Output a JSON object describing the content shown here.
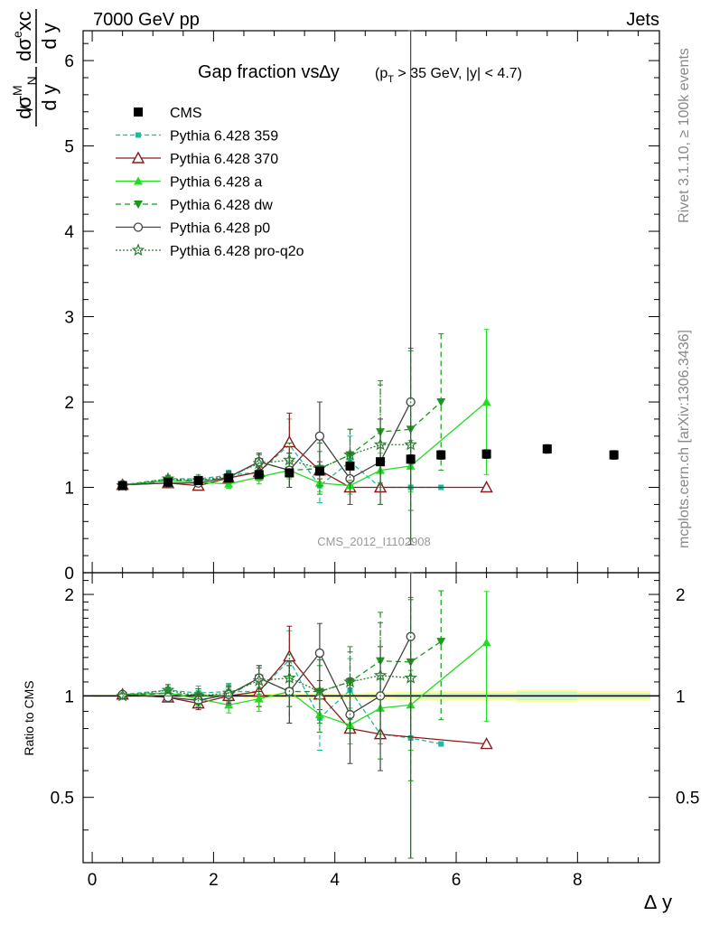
{
  "header": {
    "left": "7000 GeV pp",
    "right": "Jets"
  },
  "side_text": {
    "rivet": "Rivet 3.1.10, ≥ 100k events",
    "mcplots": "mcplots.cern.ch [arXiv:1306.3436]"
  },
  "analysis_label": "CMS_2012_I1102908",
  "colors": {
    "cms": "#000000",
    "p359": "#1abc9c",
    "p370": "#8b1a1a",
    "a": "#22dd22",
    "dw": "#1a9a1a",
    "p0": "#444444",
    "pro_q2o": "#2e7d32",
    "band_outer": "#ffff99",
    "band_inner": "#ccf5cc"
  },
  "chart_data": [
    {
      "type": "scatter",
      "title": "Gap fraction vs∆y",
      "title_sub": "(p_T > 35 GeV, |y| < 4.7)",
      "ylabel": "dσ^M_N/dy / dσ^exc/dy",
      "xlabel": "",
      "xlim": [
        -0.15,
        9.35
      ],
      "ylim": [
        0,
        6.35
      ],
      "yticks": [
        0,
        1,
        2,
        3,
        4,
        5,
        6
      ],
      "grid": false,
      "legend_position": "top-left",
      "series": [
        {
          "name": "CMS",
          "key": "cms",
          "style": "square",
          "dash": "",
          "x": [
            0.5,
            1.25,
            1.75,
            2.25,
            2.75,
            3.25,
            3.75,
            4.25,
            4.75,
            5.25,
            5.75,
            6.5,
            7.5,
            8.6
          ],
          "y": [
            1.02,
            1.06,
            1.08,
            1.11,
            1.15,
            1.17,
            1.19,
            1.25,
            1.3,
            1.33,
            1.38,
            1.39,
            1.45,
            1.38
          ],
          "err": [
            0.01,
            0.01,
            0.01,
            0.01,
            0.02,
            0.02,
            0.03,
            0.03,
            0.04,
            0.05,
            0.05,
            0.05,
            0.05,
            0.05
          ]
        },
        {
          "name": "Pythia 6.428 359",
          "key": "p359",
          "style": "smallsquare",
          "dash": "5,3",
          "x": [
            0.5,
            1.25,
            1.75,
            2.25,
            2.75,
            3.25,
            3.75,
            4.25,
            4.75,
            5.25,
            5.75
          ],
          "y": [
            1.03,
            1.1,
            1.1,
            1.14,
            1.18,
            1.5,
            1.02,
            1.3,
            1.0,
            1.0,
            1.0
          ],
          "err": [
            0.02,
            0.04,
            0.05,
            0.06,
            0.1,
            0.3,
            0.2,
            0.3,
            0.0,
            0.0,
            0.0
          ]
        },
        {
          "name": "Pythia 6.428 370",
          "key": "p370",
          "style": "triangle-open",
          "dash": "",
          "x": [
            0.5,
            1.25,
            1.75,
            2.25,
            2.75,
            3.25,
            3.75,
            4.25,
            4.75,
            6.5
          ],
          "y": [
            1.03,
            1.05,
            1.02,
            1.11,
            1.18,
            1.53,
            1.2,
            1.0,
            1.0,
            1.0
          ],
          "err": [
            0.02,
            0.03,
            0.04,
            0.06,
            0.1,
            0.34,
            0.1,
            0.0,
            0.0,
            0.0
          ]
        },
        {
          "name": "Pythia 6.428 a",
          "key": "a",
          "style": "triangle-up",
          "dash": "",
          "x": [
            0.5,
            1.25,
            1.75,
            2.25,
            2.75,
            3.25,
            3.75,
            4.25,
            4.75,
            5.25,
            6.5
          ],
          "y": [
            1.03,
            1.08,
            1.06,
            1.04,
            1.12,
            1.2,
            1.05,
            1.02,
            1.2,
            1.25,
            2.0
          ],
          "err": [
            0.02,
            0.04,
            0.04,
            0.05,
            0.08,
            0.1,
            0.1,
            0.1,
            0.2,
            0.3,
            0.85
          ]
        },
        {
          "name": "Pythia 6.428 dw",
          "key": "dw",
          "style": "triangle-down",
          "dash": "6,4",
          "x": [
            0.5,
            1.25,
            1.75,
            2.25,
            2.75,
            3.25,
            3.75,
            4.25,
            4.75,
            5.25,
            5.75
          ],
          "y": [
            1.02,
            1.08,
            1.08,
            1.11,
            1.3,
            1.2,
            1.22,
            1.38,
            1.65,
            1.68,
            2.0
          ],
          "err": [
            0.02,
            0.04,
            0.05,
            0.06,
            0.1,
            0.2,
            0.2,
            0.3,
            0.6,
            0.95,
            0.8
          ]
        },
        {
          "name": "Pythia 6.428 p0",
          "key": "p0",
          "style": "circle-open",
          "dash": "",
          "x": [
            0.5,
            1.25,
            1.75,
            2.25,
            2.75,
            3.25,
            3.75,
            4.25,
            4.75,
            5.25
          ],
          "y": [
            1.03,
            1.05,
            1.05,
            1.12,
            1.3,
            1.2,
            1.6,
            1.1,
            1.3,
            2.0
          ],
          "err": [
            0.02,
            0.03,
            0.04,
            0.06,
            0.1,
            0.2,
            0.4,
            0.3,
            0.5,
            5.0
          ]
        },
        {
          "name": "Pythia 6.428 pro-q2o",
          "key": "pro_q2o",
          "style": "star",
          "dash": "2,2",
          "x": [
            0.5,
            1.25,
            1.75,
            2.25,
            2.75,
            3.25,
            3.75,
            4.25,
            4.75,
            5.25
          ],
          "y": [
            1.02,
            1.1,
            1.08,
            1.13,
            1.28,
            1.32,
            1.22,
            1.38,
            1.5,
            1.5
          ],
          "err": [
            0.02,
            0.04,
            0.05,
            0.06,
            0.1,
            0.2,
            0.3,
            0.3,
            0.7,
            1.1
          ]
        }
      ]
    },
    {
      "type": "scatter",
      "title": "",
      "ylabel": "Ratio to CMS",
      "xlabel": "∆ y",
      "xlim": [
        -0.15,
        9.35
      ],
      "ylim": [
        0.32,
        2.32
      ],
      "ylog": true,
      "yticks": [
        0.5,
        1,
        2
      ],
      "xticks": [
        0,
        2,
        4,
        6,
        8
      ],
      "grid": false,
      "band": {
        "edges": [
          0.0,
          1.0,
          1.5,
          2.0,
          2.5,
          3.0,
          3.5,
          4.0,
          4.5,
          5.0,
          5.5,
          6.0,
          7.0,
          8.0,
          9.2
        ],
        "outer": [
          0.01,
          0.01,
          0.01,
          0.01,
          0.015,
          0.015,
          0.02,
          0.02,
          0.025,
          0.03,
          0.035,
          0.035,
          0.045,
          0.035
        ],
        "inner": [
          0.005,
          0.005,
          0.005,
          0.005,
          0.008,
          0.008,
          0.01,
          0.01,
          0.012,
          0.015,
          0.02,
          0.02,
          0.03,
          0.02
        ]
      },
      "series": [
        {
          "key": "p359",
          "style": "smallsquare",
          "dash": "5,3",
          "x": [
            0.5,
            1.25,
            1.75,
            2.25,
            2.75,
            3.25,
            3.75,
            4.25,
            4.75,
            5.25,
            5.75
          ],
          "y": [
            1.01,
            1.04,
            1.02,
            1.03,
            1.03,
            1.28,
            0.86,
            1.04,
            0.77,
            0.75,
            0.72
          ],
          "err": [
            0.02,
            0.04,
            0.05,
            0.06,
            0.1,
            0.28,
            0.17,
            0.25,
            0.0,
            0.0,
            0.0
          ]
        },
        {
          "key": "p370",
          "style": "triangle-open",
          "dash": "",
          "x": [
            0.5,
            1.25,
            1.75,
            2.25,
            2.75,
            3.25,
            3.75,
            4.25,
            4.75,
            6.5
          ],
          "y": [
            1.01,
            0.99,
            0.95,
            1.0,
            1.03,
            1.31,
            1.01,
            0.8,
            0.77,
            0.72
          ],
          "err": [
            0.02,
            0.03,
            0.04,
            0.06,
            0.1,
            0.3,
            0.1,
            0.0,
            0.0,
            0.0
          ]
        },
        {
          "key": "a",
          "style": "triangle-up",
          "dash": "",
          "x": [
            0.5,
            1.25,
            1.75,
            2.25,
            2.75,
            3.25,
            3.75,
            4.25,
            4.75,
            5.25,
            6.5
          ],
          "y": [
            1.01,
            1.02,
            0.98,
            0.94,
            0.98,
            1.03,
            0.88,
            0.82,
            0.92,
            0.94,
            1.44
          ],
          "err": [
            0.02,
            0.04,
            0.04,
            0.05,
            0.08,
            0.1,
            0.1,
            0.1,
            0.2,
            0.25,
            0.6
          ]
        },
        {
          "key": "dw",
          "style": "triangle-down",
          "dash": "6,4",
          "x": [
            0.5,
            1.25,
            1.75,
            2.25,
            2.75,
            3.25,
            3.75,
            4.25,
            4.75,
            5.25,
            5.75
          ],
          "y": [
            1.0,
            1.02,
            1.0,
            1.0,
            1.13,
            1.03,
            1.03,
            1.1,
            1.27,
            1.26,
            1.45
          ],
          "err": [
            0.02,
            0.04,
            0.05,
            0.06,
            0.1,
            0.2,
            0.2,
            0.3,
            0.5,
            0.7,
            0.6
          ]
        },
        {
          "key": "p0",
          "style": "circle-open",
          "dash": "",
          "x": [
            0.5,
            1.25,
            1.75,
            2.25,
            2.75,
            3.25,
            3.75,
            4.25,
            4.75,
            5.25
          ],
          "y": [
            1.01,
            0.99,
            0.97,
            1.01,
            1.13,
            1.03,
            1.34,
            0.88,
            1.0,
            1.5
          ],
          "err": [
            0.02,
            0.03,
            0.04,
            0.06,
            0.1,
            0.2,
            0.3,
            0.25,
            0.4,
            3.0
          ]
        },
        {
          "key": "pro_q2o",
          "style": "star",
          "dash": "2,2",
          "x": [
            0.5,
            1.25,
            1.75,
            2.25,
            2.75,
            3.25,
            3.75,
            4.25,
            4.75,
            5.25
          ],
          "y": [
            1.0,
            1.04,
            1.0,
            1.02,
            1.11,
            1.13,
            1.03,
            1.1,
            1.15,
            1.13
          ],
          "err": [
            0.02,
            0.04,
            0.05,
            0.06,
            0.1,
            0.2,
            0.25,
            0.25,
            0.5,
            0.8
          ]
        }
      ]
    }
  ]
}
